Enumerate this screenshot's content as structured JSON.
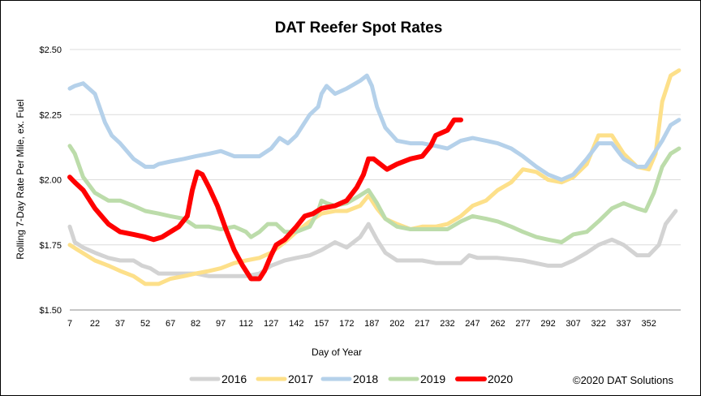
{
  "chart_data": {
    "type": "line",
    "title": "DAT Reefer Spot Rates",
    "xlabel": "Day of Year",
    "ylabel": "Rolling 7-Day Rate Per Mile, ex. Fuel",
    "xlim": [
      7,
      371
    ],
    "ylim": [
      1.5,
      2.5
    ],
    "x_ticks": [
      7,
      22,
      37,
      52,
      67,
      82,
      97,
      112,
      127,
      142,
      157,
      172,
      187,
      202,
      217,
      232,
      247,
      262,
      277,
      292,
      307,
      322,
      337,
      352
    ],
    "y_ticks": [
      1.5,
      1.75,
      2.0,
      2.25,
      2.5
    ],
    "y_tick_labels": [
      "$1.50",
      "$1.75",
      "$2.00",
      "$2.25",
      "$2.50"
    ],
    "grid": "horizontal",
    "legend_position": "bottom",
    "credit": "©2020 DAT Solutions",
    "series": [
      {
        "name": "2016",
        "color": "#d3d3d3",
        "points": [
          [
            7,
            1.82
          ],
          [
            10,
            1.76
          ],
          [
            15,
            1.74
          ],
          [
            22,
            1.72
          ],
          [
            30,
            1.7
          ],
          [
            37,
            1.69
          ],
          [
            45,
            1.69
          ],
          [
            50,
            1.67
          ],
          [
            55,
            1.66
          ],
          [
            60,
            1.64
          ],
          [
            67,
            1.64
          ],
          [
            75,
            1.64
          ],
          [
            82,
            1.64
          ],
          [
            90,
            1.63
          ],
          [
            97,
            1.63
          ],
          [
            105,
            1.63
          ],
          [
            112,
            1.63
          ],
          [
            120,
            1.64
          ],
          [
            127,
            1.67
          ],
          [
            135,
            1.69
          ],
          [
            142,
            1.7
          ],
          [
            150,
            1.71
          ],
          [
            157,
            1.73
          ],
          [
            165,
            1.76
          ],
          [
            172,
            1.74
          ],
          [
            180,
            1.78
          ],
          [
            185,
            1.83
          ],
          [
            190,
            1.77
          ],
          [
            195,
            1.72
          ],
          [
            202,
            1.69
          ],
          [
            210,
            1.69
          ],
          [
            217,
            1.69
          ],
          [
            225,
            1.68
          ],
          [
            232,
            1.68
          ],
          [
            240,
            1.68
          ],
          [
            245,
            1.71
          ],
          [
            250,
            1.7
          ],
          [
            262,
            1.7
          ],
          [
            277,
            1.69
          ],
          [
            292,
            1.67
          ],
          [
            300,
            1.67
          ],
          [
            307,
            1.69
          ],
          [
            315,
            1.72
          ],
          [
            322,
            1.75
          ],
          [
            330,
            1.77
          ],
          [
            337,
            1.75
          ],
          [
            345,
            1.71
          ],
          [
            352,
            1.71
          ],
          [
            358,
            1.75
          ],
          [
            362,
            1.83
          ],
          [
            368,
            1.88
          ]
        ]
      },
      {
        "name": "2017",
        "color": "#fde08a",
        "points": [
          [
            7,
            1.75
          ],
          [
            12,
            1.73
          ],
          [
            22,
            1.69
          ],
          [
            30,
            1.67
          ],
          [
            37,
            1.65
          ],
          [
            45,
            1.63
          ],
          [
            52,
            1.6
          ],
          [
            60,
            1.6
          ],
          [
            67,
            1.62
          ],
          [
            75,
            1.63
          ],
          [
            82,
            1.64
          ],
          [
            90,
            1.65
          ],
          [
            97,
            1.66
          ],
          [
            105,
            1.68
          ],
          [
            112,
            1.69
          ],
          [
            120,
            1.7
          ],
          [
            127,
            1.72
          ],
          [
            135,
            1.76
          ],
          [
            142,
            1.8
          ],
          [
            150,
            1.84
          ],
          [
            157,
            1.87
          ],
          [
            165,
            1.88
          ],
          [
            172,
            1.88
          ],
          [
            180,
            1.9
          ],
          [
            185,
            1.94
          ],
          [
            190,
            1.89
          ],
          [
            195,
            1.85
          ],
          [
            202,
            1.83
          ],
          [
            210,
            1.81
          ],
          [
            217,
            1.82
          ],
          [
            225,
            1.82
          ],
          [
            232,
            1.83
          ],
          [
            240,
            1.86
          ],
          [
            247,
            1.9
          ],
          [
            255,
            1.92
          ],
          [
            262,
            1.96
          ],
          [
            270,
            1.99
          ],
          [
            277,
            2.04
          ],
          [
            285,
            2.03
          ],
          [
            292,
            2.0
          ],
          [
            300,
            1.99
          ],
          [
            307,
            2.01
          ],
          [
            315,
            2.06
          ],
          [
            322,
            2.17
          ],
          [
            330,
            2.17
          ],
          [
            337,
            2.1
          ],
          [
            345,
            2.05
          ],
          [
            352,
            2.04
          ],
          [
            356,
            2.1
          ],
          [
            360,
            2.3
          ],
          [
            365,
            2.4
          ],
          [
            370,
            2.42
          ]
        ]
      },
      {
        "name": "2018",
        "color": "#b5d1ea",
        "points": [
          [
            7,
            2.35
          ],
          [
            10,
            2.36
          ],
          [
            15,
            2.37
          ],
          [
            22,
            2.33
          ],
          [
            28,
            2.22
          ],
          [
            32,
            2.17
          ],
          [
            37,
            2.14
          ],
          [
            45,
            2.08
          ],
          [
            52,
            2.05
          ],
          [
            57,
            2.05
          ],
          [
            60,
            2.06
          ],
          [
            67,
            2.07
          ],
          [
            75,
            2.08
          ],
          [
            82,
            2.09
          ],
          [
            90,
            2.1
          ],
          [
            97,
            2.11
          ],
          [
            105,
            2.09
          ],
          [
            112,
            2.09
          ],
          [
            120,
            2.09
          ],
          [
            127,
            2.12
          ],
          [
            132,
            2.16
          ],
          [
            137,
            2.14
          ],
          [
            142,
            2.17
          ],
          [
            147,
            2.22
          ],
          [
            150,
            2.25
          ],
          [
            155,
            2.28
          ],
          [
            157,
            2.33
          ],
          [
            160,
            2.36
          ],
          [
            165,
            2.33
          ],
          [
            172,
            2.35
          ],
          [
            180,
            2.38
          ],
          [
            184,
            2.4
          ],
          [
            187,
            2.36
          ],
          [
            190,
            2.28
          ],
          [
            195,
            2.2
          ],
          [
            202,
            2.15
          ],
          [
            210,
            2.14
          ],
          [
            217,
            2.14
          ],
          [
            225,
            2.13
          ],
          [
            232,
            2.12
          ],
          [
            240,
            2.15
          ],
          [
            247,
            2.16
          ],
          [
            255,
            2.15
          ],
          [
            262,
            2.14
          ],
          [
            270,
            2.12
          ],
          [
            277,
            2.09
          ],
          [
            285,
            2.05
          ],
          [
            292,
            2.02
          ],
          [
            300,
            2.0
          ],
          [
            307,
            2.02
          ],
          [
            315,
            2.08
          ],
          [
            322,
            2.14
          ],
          [
            330,
            2.14
          ],
          [
            337,
            2.08
          ],
          [
            345,
            2.05
          ],
          [
            350,
            2.05
          ],
          [
            355,
            2.1
          ],
          [
            360,
            2.15
          ],
          [
            365,
            2.21
          ],
          [
            370,
            2.23
          ]
        ]
      },
      {
        "name": "2019",
        "color": "#bcdcaa",
        "points": [
          [
            7,
            2.13
          ],
          [
            10,
            2.1
          ],
          [
            15,
            2.01
          ],
          [
            22,
            1.95
          ],
          [
            30,
            1.92
          ],
          [
            37,
            1.92
          ],
          [
            45,
            1.9
          ],
          [
            52,
            1.88
          ],
          [
            60,
            1.87
          ],
          [
            67,
            1.86
          ],
          [
            75,
            1.85
          ],
          [
            82,
            1.82
          ],
          [
            90,
            1.82
          ],
          [
            97,
            1.81
          ],
          [
            105,
            1.82
          ],
          [
            112,
            1.8
          ],
          [
            115,
            1.78
          ],
          [
            120,
            1.8
          ],
          [
            125,
            1.83
          ],
          [
            130,
            1.83
          ],
          [
            135,
            1.8
          ],
          [
            142,
            1.8
          ],
          [
            150,
            1.82
          ],
          [
            155,
            1.88
          ],
          [
            157,
            1.92
          ],
          [
            160,
            1.91
          ],
          [
            165,
            1.9
          ],
          [
            172,
            1.91
          ],
          [
            180,
            1.94
          ],
          [
            185,
            1.96
          ],
          [
            190,
            1.91
          ],
          [
            195,
            1.85
          ],
          [
            202,
            1.82
          ],
          [
            210,
            1.81
          ],
          [
            217,
            1.81
          ],
          [
            225,
            1.81
          ],
          [
            232,
            1.81
          ],
          [
            240,
            1.84
          ],
          [
            247,
            1.86
          ],
          [
            255,
            1.85
          ],
          [
            262,
            1.84
          ],
          [
            270,
            1.82
          ],
          [
            277,
            1.8
          ],
          [
            285,
            1.78
          ],
          [
            292,
            1.77
          ],
          [
            300,
            1.76
          ],
          [
            307,
            1.79
          ],
          [
            315,
            1.8
          ],
          [
            322,
            1.84
          ],
          [
            330,
            1.89
          ],
          [
            337,
            1.91
          ],
          [
            345,
            1.89
          ],
          [
            350,
            1.88
          ],
          [
            355,
            1.95
          ],
          [
            360,
            2.05
          ],
          [
            365,
            2.1
          ],
          [
            370,
            2.12
          ]
        ]
      },
      {
        "name": "2020",
        "color": "#ff0000",
        "points": [
          [
            7,
            2.01
          ],
          [
            10,
            1.99
          ],
          [
            15,
            1.96
          ],
          [
            22,
            1.89
          ],
          [
            30,
            1.83
          ],
          [
            37,
            1.8
          ],
          [
            45,
            1.79
          ],
          [
            52,
            1.78
          ],
          [
            57,
            1.77
          ],
          [
            62,
            1.78
          ],
          [
            67,
            1.8
          ],
          [
            72,
            1.82
          ],
          [
            77,
            1.86
          ],
          [
            80,
            1.96
          ],
          [
            83,
            2.03
          ],
          [
            86,
            2.02
          ],
          [
            90,
            1.97
          ],
          [
            95,
            1.9
          ],
          [
            100,
            1.81
          ],
          [
            105,
            1.73
          ],
          [
            110,
            1.67
          ],
          [
            115,
            1.62
          ],
          [
            120,
            1.62
          ],
          [
            123,
            1.65
          ],
          [
            127,
            1.71
          ],
          [
            130,
            1.75
          ],
          [
            135,
            1.77
          ],
          [
            142,
            1.82
          ],
          [
            147,
            1.86
          ],
          [
            152,
            1.87
          ],
          [
            157,
            1.89
          ],
          [
            165,
            1.9
          ],
          [
            172,
            1.92
          ],
          [
            178,
            1.97
          ],
          [
            182,
            2.02
          ],
          [
            185,
            2.08
          ],
          [
            188,
            2.08
          ],
          [
            192,
            2.06
          ],
          [
            196,
            2.04
          ],
          [
            202,
            2.06
          ],
          [
            210,
            2.08
          ],
          [
            217,
            2.09
          ],
          [
            222,
            2.13
          ],
          [
            225,
            2.17
          ],
          [
            232,
            2.19
          ],
          [
            236,
            2.23
          ],
          [
            240,
            2.23
          ]
        ]
      }
    ]
  }
}
